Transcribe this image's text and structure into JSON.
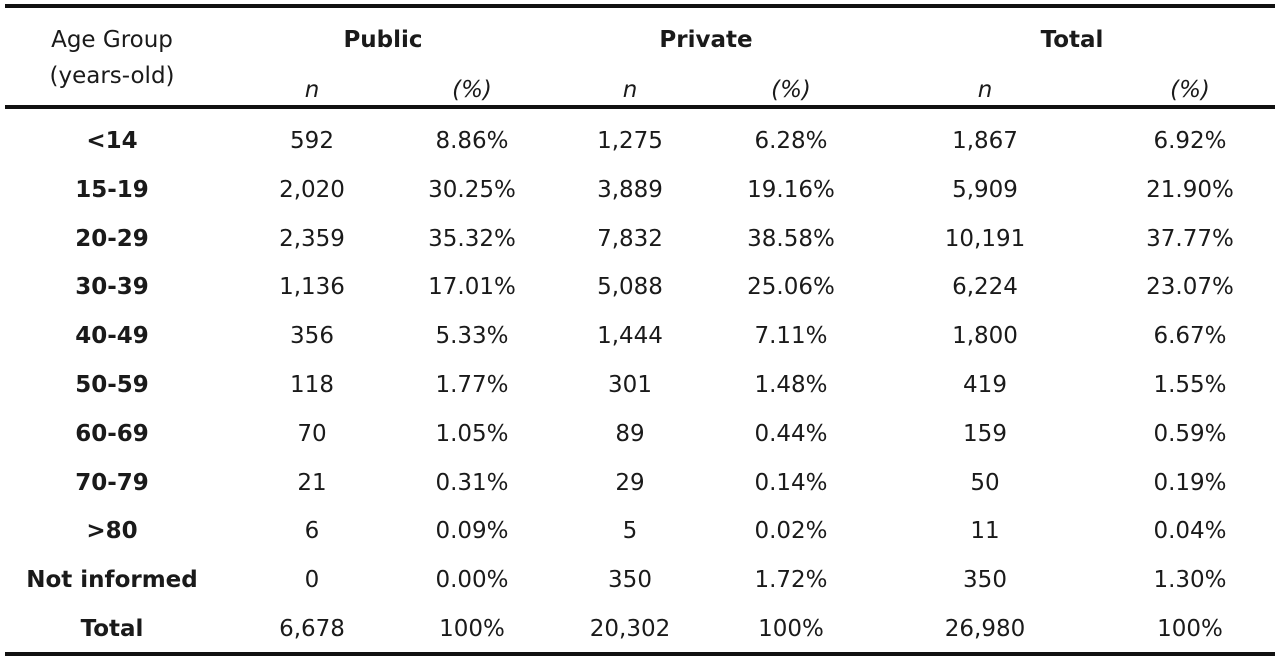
{
  "table": {
    "header": {
      "first_col": [
        "Age Group",
        "(years-old)"
      ],
      "groups": [
        "Public",
        "Private",
        "Total"
      ],
      "subcols": [
        "n",
        "(%)",
        "n",
        "(%)",
        "n",
        "(%)"
      ]
    },
    "rows": [
      {
        "label": "<14",
        "values": [
          "592",
          "8.86%",
          "1,275",
          "6.28%",
          "1,867",
          "6.92%"
        ]
      },
      {
        "label": "15-19",
        "values": [
          "2,020",
          "30.25%",
          "3,889",
          "19.16%",
          "5,909",
          "21.90%"
        ]
      },
      {
        "label": "20-29",
        "values": [
          "2,359",
          "35.32%",
          "7,832",
          "38.58%",
          "10,191",
          "37.77%"
        ]
      },
      {
        "label": "30-39",
        "values": [
          "1,136",
          "17.01%",
          "5,088",
          "25.06%",
          "6,224",
          "23.07%"
        ]
      },
      {
        "label": "40-49",
        "values": [
          "356",
          "5.33%",
          "1,444",
          "7.11%",
          "1,800",
          "6.67%"
        ]
      },
      {
        "label": "50-59",
        "values": [
          "118",
          "1.77%",
          "301",
          "1.48%",
          "419",
          "1.55%"
        ]
      },
      {
        "label": "60-69",
        "values": [
          "70",
          "1.05%",
          "89",
          "0.44%",
          "159",
          "0.59%"
        ]
      },
      {
        "label": "70-79",
        "values": [
          "21",
          "0.31%",
          "29",
          "0.14%",
          "50",
          "0.19%"
        ]
      },
      {
        "label": ">80",
        "values": [
          "6",
          "0.09%",
          "5",
          "0.02%",
          "11",
          "0.04%"
        ]
      },
      {
        "label": "Not informed",
        "values": [
          "0",
          "0.00%",
          "350",
          "1.72%",
          "350",
          "1.30%"
        ]
      },
      {
        "label": "Total",
        "values": [
          "6,678",
          "100%",
          "20,302",
          "100%",
          "26,980",
          "100%"
        ]
      }
    ]
  }
}
